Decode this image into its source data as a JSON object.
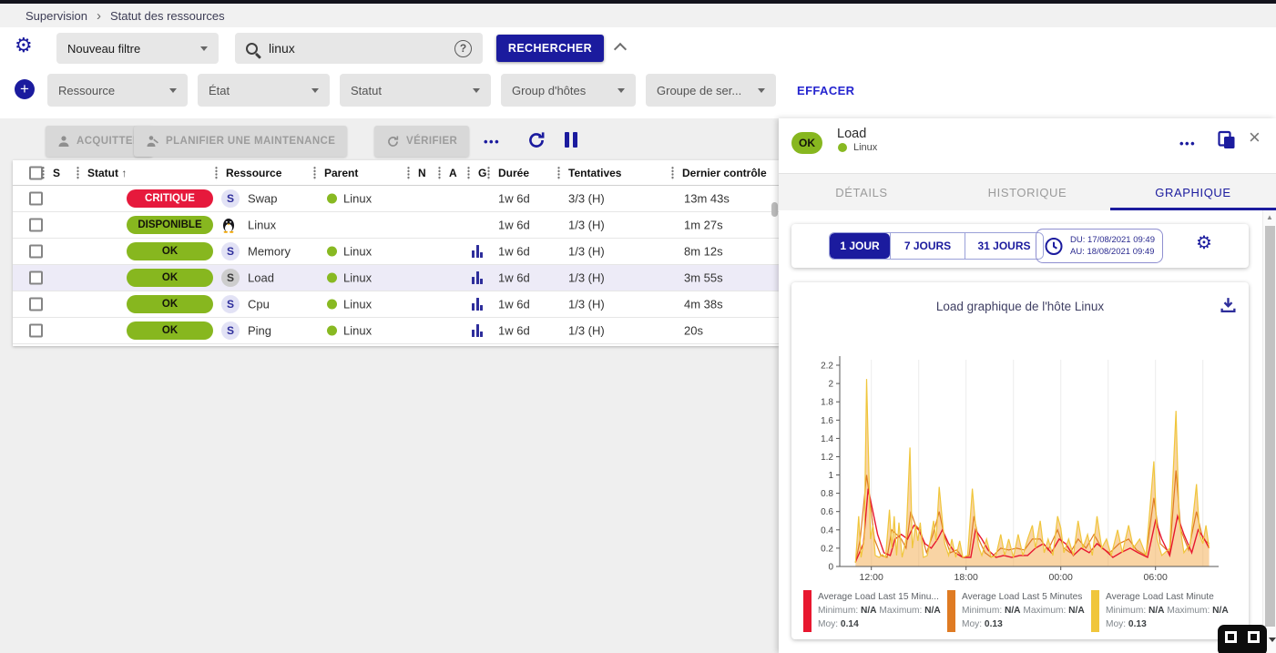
{
  "colors": {
    "primary": "#1b1b9e",
    "ok_green": "#87b71f",
    "critical_red": "#e6193c",
    "selected_row": "#edebf7",
    "link_blue": "#2525cf"
  },
  "icons": {
    "breadcrumb_sep": "›",
    "sort_asc": "↑",
    "gear": "⚙",
    "scroll_up": "▲",
    "close": "×",
    "dots": "•••",
    "plus": "+",
    "help": "?"
  },
  "breadcrumb": {
    "section": "Supervision",
    "page": "Statut des ressources"
  },
  "filters": {
    "saved_filter_label": "Nouveau filtre",
    "search_value": "linux",
    "search_button": "RECHERCHER",
    "criteria": [
      "Ressource",
      "État",
      "Statut",
      "Group d'hôtes",
      "Groupe de ser..."
    ],
    "clear_label": "EFFACER"
  },
  "actions": {
    "acknowledge": "ACQUITTER",
    "downtime": "PLANIFIER UNE MAINTENANCE",
    "check": "VÉRIFIER"
  },
  "table": {
    "columns": [
      "S",
      "Statut",
      "Ressource",
      "Parent",
      "N",
      "A",
      "G",
      "Durée",
      "Tentatives",
      "Dernier contrôle"
    ],
    "sorted_column": "Statut",
    "rows": [
      {
        "status": "CRITIQUE",
        "status_style": "critical",
        "type": "service",
        "resource": "Swap",
        "parent": "Linux",
        "has_graph": false,
        "duration": "1w 6d",
        "tries": "3/3 (H)",
        "last_check": "13m 43s",
        "selected": false
      },
      {
        "status": "DISPONIBLE",
        "status_style": "ok",
        "type": "host",
        "resource": "Linux",
        "parent": null,
        "has_graph": false,
        "duration": "1w 6d",
        "tries": "1/3 (H)",
        "last_check": "1m 27s",
        "selected": false
      },
      {
        "status": "OK",
        "status_style": "ok",
        "type": "service",
        "resource": "Memory",
        "parent": "Linux",
        "has_graph": true,
        "duration": "1w 6d",
        "tries": "1/3 (H)",
        "last_check": "8m 12s",
        "selected": false
      },
      {
        "status": "OK",
        "status_style": "ok",
        "type": "service",
        "resource": "Load",
        "parent": "Linux",
        "has_graph": true,
        "duration": "1w 6d",
        "tries": "1/3 (H)",
        "last_check": "3m 55s",
        "selected": true
      },
      {
        "status": "OK",
        "status_style": "ok",
        "type": "service",
        "resource": "Cpu",
        "parent": "Linux",
        "has_graph": true,
        "duration": "1w 6d",
        "tries": "1/3 (H)",
        "last_check": "4m 38s",
        "selected": false
      },
      {
        "status": "OK",
        "status_style": "ok",
        "type": "service",
        "resource": "Ping",
        "parent": "Linux",
        "has_graph": true,
        "duration": "1w 6d",
        "tries": "1/3 (H)",
        "last_check": "20s",
        "selected": false
      }
    ]
  },
  "panel": {
    "status": "OK",
    "title": "Load",
    "host": "Linux",
    "tabs": [
      {
        "label": "DÉTAILS",
        "active": false
      },
      {
        "label": "HISTORIQUE",
        "active": false
      },
      {
        "label": "GRAPHIQUE",
        "active": true
      }
    ],
    "ranges": [
      {
        "label": "1 JOUR",
        "active": true
      },
      {
        "label": "7 JOURS",
        "active": false
      },
      {
        "label": "31 JOURS",
        "active": false
      }
    ],
    "date_from": "DU: 17/08/2021 09:49",
    "date_to": "AU: 18/08/2021 09:49"
  },
  "chart_labels": {
    "min": "Minimum:",
    "max": "Maximum:",
    "avg": "Moy:"
  },
  "chart_data": {
    "type": "area",
    "title": "Load graphique de l'hôte Linux",
    "x_domain": [
      10,
      34
    ],
    "y_domain": [
      0,
      2.2
    ],
    "y_tick_step": 0.2,
    "x_grid_every": 3,
    "x_ticks": [
      {
        "t": 12,
        "label": "12:00"
      },
      {
        "t": 18,
        "label": "18:00"
      },
      {
        "t": 24,
        "label": "00:00"
      },
      {
        "t": 30,
        "label": "06:00"
      }
    ],
    "series": [
      {
        "name": "Average Load Last 15 Minutes",
        "display": "Average Load Last 15 Minu...",
        "color": "#e8172f",
        "min": "N/A",
        "max": "N/A",
        "avg": "0.14",
        "fill": false,
        "points": [
          [
            11,
            0.05
          ],
          [
            11.5,
            0.25
          ],
          [
            11.8,
            0.85
          ],
          [
            12.1,
            0.6
          ],
          [
            12.4,
            0.35
          ],
          [
            12.8,
            0.15
          ],
          [
            13.2,
            0.12
          ],
          [
            13.5,
            0.3
          ],
          [
            13.9,
            0.35
          ],
          [
            14.3,
            0.3
          ],
          [
            14.7,
            0.45
          ],
          [
            15,
            0.4
          ],
          [
            15.4,
            0.25
          ],
          [
            15.8,
            0.2
          ],
          [
            16.2,
            0.3
          ],
          [
            16.5,
            0.4
          ],
          [
            16.9,
            0.25
          ],
          [
            17.3,
            0.15
          ],
          [
            17.8,
            0.1
          ],
          [
            18.3,
            0.1
          ],
          [
            18.6,
            0.4
          ],
          [
            19,
            0.3
          ],
          [
            19.4,
            0.18
          ],
          [
            19.9,
            0.1
          ],
          [
            20.4,
            0.12
          ],
          [
            20.9,
            0.1
          ],
          [
            21.4,
            0.12
          ],
          [
            21.9,
            0.12
          ],
          [
            22.4,
            0.2
          ],
          [
            22.9,
            0.25
          ],
          [
            23.4,
            0.15
          ],
          [
            23.9,
            0.3
          ],
          [
            24.3,
            0.25
          ],
          [
            24.8,
            0.12
          ],
          [
            25.3,
            0.2
          ],
          [
            25.8,
            0.15
          ],
          [
            26.3,
            0.25
          ],
          [
            26.8,
            0.18
          ],
          [
            27.3,
            0.1
          ],
          [
            27.8,
            0.15
          ],
          [
            28.4,
            0.2
          ],
          [
            28.9,
            0.15
          ],
          [
            29.5,
            0.1
          ],
          [
            30,
            0.5
          ],
          [
            30.4,
            0.3
          ],
          [
            30.9,
            0.12
          ],
          [
            31.4,
            0.55
          ],
          [
            31.8,
            0.35
          ],
          [
            32.3,
            0.15
          ],
          [
            32.7,
            0.4
          ],
          [
            33.1,
            0.3
          ],
          [
            33.4,
            0.2
          ]
        ]
      },
      {
        "name": "Average Load Last 5 Minutes",
        "display": "Average Load Last 5 Minutes",
        "color": "#df7b23",
        "min": "N/A",
        "max": "N/A",
        "avg": "0.13",
        "fill": false,
        "points": [
          [
            11,
            0.04
          ],
          [
            11.3,
            0.3
          ],
          [
            11.7,
            1
          ],
          [
            11.9,
            0.75
          ],
          [
            12.2,
            0.3
          ],
          [
            12.6,
            0.12
          ],
          [
            13,
            0.1
          ],
          [
            13.3,
            0.4
          ],
          [
            13.6,
            0.35
          ],
          [
            13.9,
            0.3
          ],
          [
            14.2,
            0.2
          ],
          [
            14.5,
            0.6
          ],
          [
            14.8,
            0.45
          ],
          [
            15.1,
            0.4
          ],
          [
            15.5,
            0.15
          ],
          [
            15.9,
            0.35
          ],
          [
            16.3,
            0.6
          ],
          [
            16.6,
            0.35
          ],
          [
            17,
            0.15
          ],
          [
            17.4,
            0.18
          ],
          [
            17.8,
            0.1
          ],
          [
            18.2,
            0.12
          ],
          [
            18.5,
            0.55
          ],
          [
            18.8,
            0.3
          ],
          [
            19.2,
            0.15
          ],
          [
            19.6,
            0.1
          ],
          [
            20.2,
            0.2
          ],
          [
            20.7,
            0.18
          ],
          [
            21.2,
            0.2
          ],
          [
            21.7,
            0.18
          ],
          [
            22.2,
            0.3
          ],
          [
            22.7,
            0.3
          ],
          [
            23.2,
            0.18
          ],
          [
            23.8,
            0.4
          ],
          [
            24.2,
            0.2
          ],
          [
            24.6,
            0.15
          ],
          [
            25.1,
            0.3
          ],
          [
            25.6,
            0.2
          ],
          [
            26.1,
            0.35
          ],
          [
            26.6,
            0.2
          ],
          [
            27.1,
            0.15
          ],
          [
            27.7,
            0.25
          ],
          [
            28.3,
            0.3
          ],
          [
            28.8,
            0.18
          ],
          [
            29.4,
            0.12
          ],
          [
            29.9,
            0.75
          ],
          [
            30.3,
            0.25
          ],
          [
            30.9,
            0.15
          ],
          [
            31.3,
            1.05
          ],
          [
            31.6,
            0.4
          ],
          [
            32.1,
            0.18
          ],
          [
            32.6,
            0.6
          ],
          [
            33,
            0.3
          ],
          [
            33.4,
            0.25
          ]
        ]
      },
      {
        "name": "Average Load Last Minute",
        "display": "Average Load Last Minute",
        "color": "#f0c63c",
        "min": "N/A",
        "max": "N/A",
        "avg": "0.13",
        "fill": true,
        "points": [
          [
            11,
            0.04
          ],
          [
            11.2,
            0.55
          ],
          [
            11.35,
            0.1
          ],
          [
            11.55,
            0.3
          ],
          [
            11.7,
            2.05
          ],
          [
            11.85,
            1
          ],
          [
            11.95,
            0.3
          ],
          [
            12.1,
            0.45
          ],
          [
            12.25,
            0.12
          ],
          [
            12.5,
            0.1
          ],
          [
            12.7,
            0.13
          ],
          [
            12.9,
            0.1
          ],
          [
            13.15,
            0.62
          ],
          [
            13.3,
            0.2
          ],
          [
            13.45,
            0.55
          ],
          [
            13.6,
            0.12
          ],
          [
            13.75,
            0.48
          ],
          [
            13.95,
            0.1
          ],
          [
            14.2,
            0.3
          ],
          [
            14.45,
            1.3
          ],
          [
            14.6,
            0.2
          ],
          [
            14.8,
            0.45
          ],
          [
            14.95,
            0.28
          ],
          [
            15.1,
            0.48
          ],
          [
            15.3,
            0.1
          ],
          [
            15.55,
            0.12
          ],
          [
            15.75,
            0.3
          ],
          [
            15.95,
            0.5
          ],
          [
            16.1,
            0.28
          ],
          [
            16.3,
            0.87
          ],
          [
            16.5,
            0.5
          ],
          [
            16.65,
            0.25
          ],
          [
            16.9,
            0.12
          ],
          [
            17.1,
            0.3
          ],
          [
            17.35,
            0.1
          ],
          [
            17.6,
            0.28
          ],
          [
            17.8,
            0.1
          ],
          [
            18.1,
            0.12
          ],
          [
            18.4,
            0.85
          ],
          [
            18.6,
            0.45
          ],
          [
            18.8,
            0.22
          ],
          [
            19,
            0.12
          ],
          [
            19.3,
            0.3
          ],
          [
            19.6,
            0.1
          ],
          [
            19.9,
            0.12
          ],
          [
            20.2,
            0.35
          ],
          [
            20.45,
            0.12
          ],
          [
            20.7,
            0.3
          ],
          [
            21,
            0.1
          ],
          [
            21.3,
            0.35
          ],
          [
            21.6,
            0.12
          ],
          [
            21.9,
            0.3
          ],
          [
            22.2,
            0.45
          ],
          [
            22.4,
            0.2
          ],
          [
            22.7,
            0.5
          ],
          [
            22.95,
            0.15
          ],
          [
            23.2,
            0.3
          ],
          [
            23.5,
            0.12
          ],
          [
            23.8,
            0.55
          ],
          [
            24,
            0.42
          ],
          [
            24.2,
            0.15
          ],
          [
            24.5,
            0.3
          ],
          [
            24.8,
            0.12
          ],
          [
            25.1,
            0.5
          ],
          [
            25.4,
            0.2
          ],
          [
            25.7,
            0.35
          ],
          [
            26,
            0.12
          ],
          [
            26.3,
            0.55
          ],
          [
            26.6,
            0.2
          ],
          [
            26.9,
            0.3
          ],
          [
            27.2,
            0.12
          ],
          [
            27.6,
            0.4
          ],
          [
            27.9,
            0.15
          ],
          [
            28.3,
            0.45
          ],
          [
            28.6,
            0.2
          ],
          [
            29,
            0.3
          ],
          [
            29.4,
            0.12
          ],
          [
            29.9,
            1.15
          ],
          [
            30.1,
            0.3
          ],
          [
            30.4,
            0.12
          ],
          [
            30.9,
            0.2
          ],
          [
            31.3,
            1.7
          ],
          [
            31.5,
            0.5
          ],
          [
            31.8,
            0.15
          ],
          [
            32.2,
            0.25
          ],
          [
            32.6,
            0.9
          ],
          [
            32.8,
            0.35
          ],
          [
            33,
            0.25
          ],
          [
            33.2,
            0.45
          ],
          [
            33.4,
            0.2
          ]
        ]
      }
    ]
  }
}
